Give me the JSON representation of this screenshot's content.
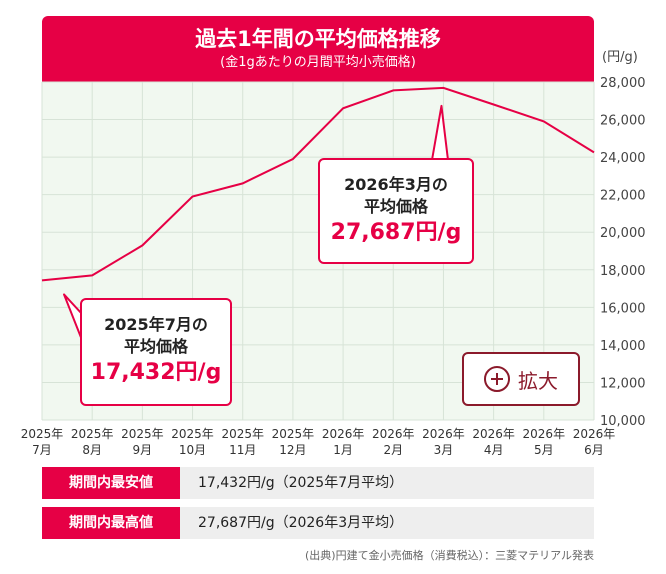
{
  "header": {
    "title": "過去1年間の平均価格推移",
    "subtitle": "(金1gあたりの月間平均小売価格)"
  },
  "unit_label": "(円/g)",
  "chart_data": {
    "type": "line",
    "title": "過去1年間の平均価格推移",
    "subtitle": "(金1gあたりの月間平均小売価格)",
    "ylabel": "(円/g)",
    "ylim": [
      10000,
      28000
    ],
    "yticks": [
      10000,
      12000,
      14000,
      16000,
      18000,
      20000,
      22000,
      24000,
      26000,
      28000
    ],
    "ytick_labels": [
      "10,000",
      "12,000",
      "14,000",
      "16,000",
      "18,000",
      "20,000",
      "22,000",
      "24,000",
      "26,000",
      "28,000"
    ],
    "categories": [
      [
        "2025年",
        "7月"
      ],
      [
        "2025年",
        "8月"
      ],
      [
        "2025年",
        "9月"
      ],
      [
        "2025年",
        "10月"
      ],
      [
        "2025年",
        "11月"
      ],
      [
        "2025年",
        "12月"
      ],
      [
        "2026年",
        "1月"
      ],
      [
        "2026年",
        "2月"
      ],
      [
        "2026年",
        "3月"
      ],
      [
        "2026年",
        "4月"
      ],
      [
        "2026年",
        "5月"
      ],
      [
        "2026年",
        "6月"
      ]
    ],
    "values": [
      17432,
      17700,
      19300,
      21900,
      22600,
      23900,
      26600,
      27550,
      27687,
      26800,
      25900,
      24250
    ],
    "line_color": "#e60045",
    "grid": true,
    "plot_background": "#f1f8f0"
  },
  "callouts": {
    "max": {
      "line1": "2026年3月の",
      "line2": "平均価格",
      "value": "27,687円/g"
    },
    "min": {
      "line1": "2025年7月の",
      "line2": "平均価格",
      "value": "17,432円/g"
    }
  },
  "zoom_button": {
    "icon": "plus-circle-icon",
    "label": "拡大"
  },
  "stats": {
    "min": {
      "label": "期間内最安値",
      "value": "17,432円/g（2025年7月平均）"
    },
    "max": {
      "label": "期間内最高値",
      "value": "27,687円/g（2026年3月平均）"
    }
  },
  "source": "(出典)円建て金小売価格（消費税込）：三菱マテリアル発表",
  "colors": {
    "accent": "#e60045",
    "zoom": "#8b1a2b",
    "stat_bg": "#eeeeee"
  }
}
